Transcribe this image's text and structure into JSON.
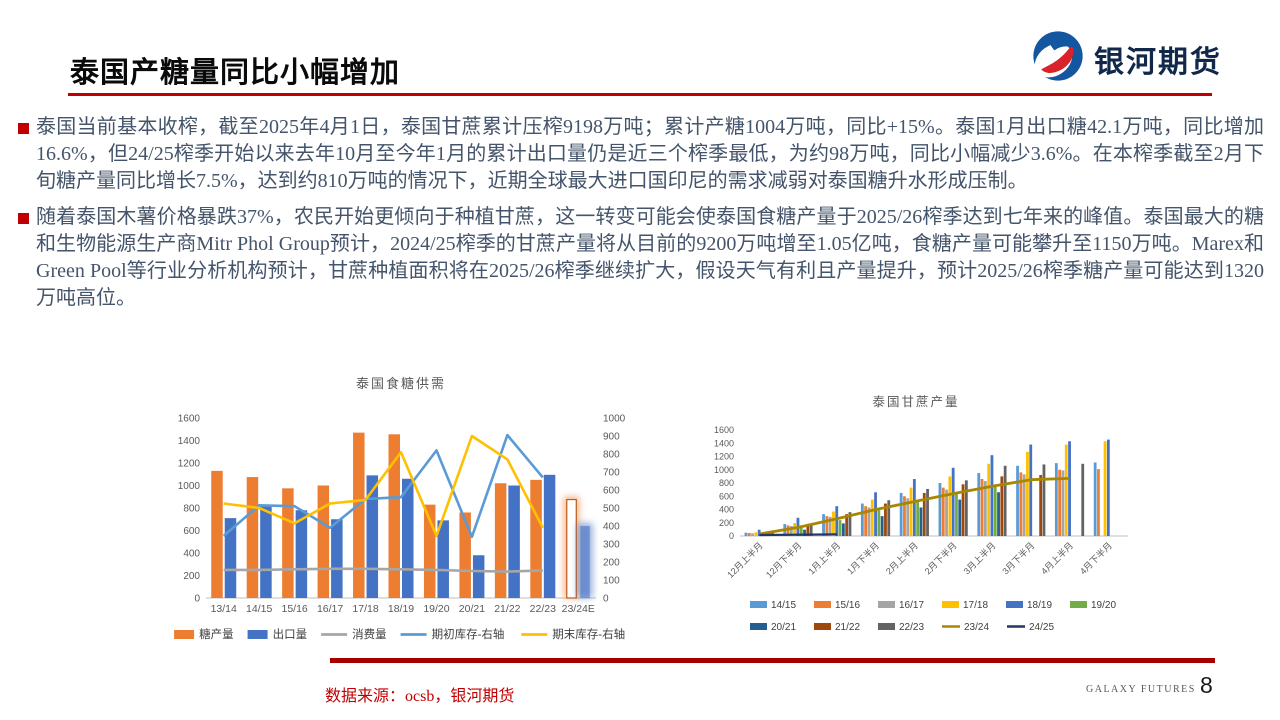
{
  "header": {
    "title": "泰国产糖量同比小幅增加",
    "logo_text": "银河期货"
  },
  "bullets": [
    {
      "text": "泰国当前基本收榨，截至2025年4月1日，泰国甘蔗累计压榨9198万吨；累计产糖1004万吨，同比+15%。泰国1月出口糖42.1万吨，同比增加16.6%，但24/25榨季开始以来去年10月至今年1月的累计出口量仍是近三个榨季最低，为约98万吨，同比小幅减少3.6%。在本榨季截至2月下旬糖产量同比增长7.5%，达到约810万吨的情况下，近期全球最大进口国印尼的需求减弱对泰国糖升水形成压制。"
    },
    {
      "text": "随着泰国木薯价格暴跌37%，农民开始更倾向于种植甘蔗，这一转变可能会使泰国食糖产量于2025/26榨季达到七年来的峰值。泰国最大的糖和生物能源生产商Mitr Phol Group预计，2024/25榨季的甘蔗产量将从目前的9200万吨增至1.05亿吨，食糖产量可能攀升至1150万吨。Marex和Green Pool等行业分析机构预计，甘蔗种植面积将在2025/26榨季继续扩大，假设天气有利且产量提升，预计2025/26榨季糖产量可能达到1320万吨高位。"
    }
  ],
  "chart_data": [
    {
      "type": "bar",
      "subtype": "combo-bar-line",
      "title": "泰国食糖供需",
      "categories": [
        "13/14",
        "14/15",
        "15/16",
        "16/17",
        "17/18",
        "18/19",
        "19/20",
        "20/21",
        "21/22",
        "22/23",
        "23/24E"
      ],
      "left_axis": {
        "min": 0,
        "max": 1600,
        "step": 200
      },
      "right_axis": {
        "min": 0,
        "max": 1000,
        "step": 100
      },
      "bar_series": [
        {
          "name": "糖产量",
          "color": "#ED7D31",
          "axis": "left",
          "values": [
            1130,
            1075,
            975,
            1000,
            1470,
            1455,
            830,
            760,
            1020,
            1050,
            875
          ]
        },
        {
          "name": "出口量",
          "color": "#4472C4",
          "axis": "left",
          "values": [
            710,
            820,
            780,
            700,
            1090,
            1060,
            690,
            380,
            1000,
            1095,
            640
          ]
        }
      ],
      "line_series": [
        {
          "name": "消费量",
          "color": "#A6A6A6",
          "axis": "left",
          "values": [
            250,
            250,
            255,
            260,
            260,
            255,
            250,
            240,
            235,
            245,
            null
          ]
        },
        {
          "name": "期初库存-右轴",
          "color": "#5B9BD5",
          "axis": "right",
          "values": [
            345,
            515,
            510,
            390,
            550,
            560,
            820,
            340,
            905,
            670,
            null
          ]
        },
        {
          "name": "期末库存-右轴",
          "color": "#FFC000",
          "axis": "right",
          "values": [
            525,
            500,
            415,
            525,
            545,
            810,
            345,
            900,
            770,
            390,
            null
          ]
        }
      ],
      "forecast_category": "23/24E",
      "legend_position": "bottom",
      "grid": "off"
    },
    {
      "type": "bar",
      "subtype": "grouped-bar-line",
      "title": "泰国甘蔗产量",
      "categories": [
        "12月上半月",
        "12月下半月",
        "1月上半月",
        "1月下半月",
        "2月上半月",
        "2月下半月",
        "3月上半月",
        "3月下半月",
        "4月上半月",
        "4月下半月"
      ],
      "left_axis": {
        "min": 0,
        "max": 1600,
        "step": 200
      },
      "bar_series": [
        {
          "name": "14/15",
          "color": "#5B9BD5",
          "values": [
            50,
            180,
            330,
            490,
            650,
            800,
            950,
            1060,
            1100,
            1110
          ]
        },
        {
          "name": "15/16",
          "color": "#ED7D31",
          "values": [
            45,
            160,
            300,
            450,
            600,
            730,
            860,
            960,
            1000,
            1010
          ]
        },
        {
          "name": "16/17",
          "color": "#A5A5A5",
          "values": [
            40,
            150,
            290,
            430,
            570,
            700,
            830,
            930,
            990,
            null
          ]
        },
        {
          "name": "17/18",
          "color": "#FFC000",
          "values": [
            55,
            195,
            370,
            550,
            730,
            900,
            1090,
            1270,
            1380,
            1430
          ]
        },
        {
          "name": "18/19",
          "color": "#4472C4",
          "values": [
            95,
            275,
            450,
            660,
            860,
            1030,
            1220,
            1380,
            1430,
            1455
          ]
        },
        {
          "name": "19/20",
          "color": "#70AD47",
          "values": [
            30,
            120,
            240,
            390,
            540,
            650,
            740,
            null,
            null,
            null
          ]
        },
        {
          "name": "20/21",
          "color": "#255E91",
          "values": [
            25,
            95,
            190,
            300,
            430,
            550,
            660,
            null,
            null,
            null
          ]
        },
        {
          "name": "21/22",
          "color": "#9E480E",
          "values": [
            45,
            165,
            330,
            490,
            650,
            780,
            900,
            920,
            null,
            null
          ]
        },
        {
          "name": "22/23",
          "color": "#636363",
          "values": [
            55,
            185,
            360,
            540,
            710,
            840,
            1060,
            1080,
            1090,
            null
          ]
        }
      ],
      "line_series": [
        {
          "name": "23/24",
          "color": "#A98600",
          "values": [
            30,
            130,
            260,
            400,
            520,
            640,
            750,
            850,
            870,
            null
          ]
        },
        {
          "name": "24/25",
          "color": "#1F3864",
          "values": [
            15,
            20,
            25,
            null,
            null,
            null,
            null,
            null,
            null,
            null
          ]
        }
      ],
      "legend_position": "bottom",
      "grid": "off"
    }
  ],
  "footer": {
    "source": "数据来源：ocsb，银河期货",
    "brand": "GALAXY FUTURES",
    "page": "8"
  },
  "theme": {
    "accent_red": "#C00000",
    "footer_bar_red": "#A50000",
    "body_text": "#44546A",
    "chart_text": "#595959",
    "logo_navy": "#12284B",
    "logo_blue": "#1456A0",
    "logo_red": "#D8232A"
  }
}
